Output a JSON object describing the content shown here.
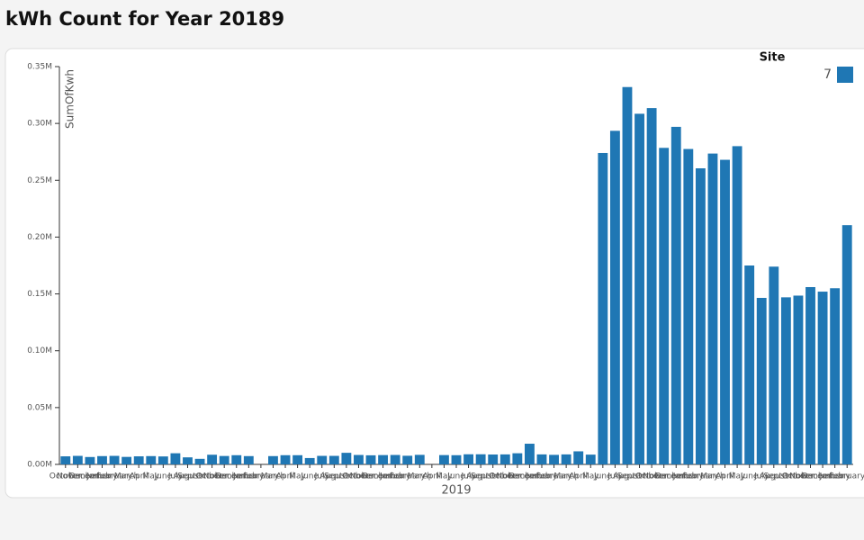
{
  "chart_data": {
    "type": "bar",
    "title": "kWh Count for Year 20189",
    "y_label": "SumOfKwh",
    "x_label": "2019",
    "legend_title": "Site",
    "categories": [
      "October",
      "November",
      "December",
      "January",
      "February",
      "March",
      "April",
      "May",
      "June",
      "July",
      "August",
      "September",
      "October",
      "November",
      "December",
      "January",
      "February",
      "March",
      "April",
      "May",
      "June",
      "July",
      "August",
      "September",
      "October",
      "November",
      "December",
      "January",
      "February",
      "March",
      "April",
      "May",
      "June",
      "July",
      "August",
      "September",
      "October",
      "November",
      "December",
      "January",
      "February",
      "March",
      "April",
      "May",
      "June",
      "July",
      "August",
      "September",
      "October",
      "November",
      "December",
      "January",
      "February",
      "March",
      "April",
      "May",
      "June",
      "July",
      "August",
      "September",
      "October",
      "November",
      "December",
      "January",
      "February"
    ],
    "series": [
      {
        "name": "7",
        "color": "#1f77b4",
        "values": [
          7100,
          7500,
          6500,
          7300,
          7500,
          6600,
          7100,
          7300,
          7000,
          9800,
          6200,
          4900,
          8500,
          7400,
          8100,
          7300,
          null,
          7300,
          8100,
          8100,
          5600,
          7500,
          7500,
          10200,
          8300,
          8000,
          8200,
          8300,
          7600,
          8400,
          null,
          8200,
          8100,
          8900,
          8900,
          8700,
          8800,
          9800,
          18200,
          8800,
          8400,
          8800,
          11500,
          8600,
          274000,
          293500,
          332000,
          308500,
          313500,
          278500,
          297000,
          277500,
          260500,
          273500,
          268000,
          280000,
          175000,
          146500,
          174000,
          147000,
          148500,
          156000,
          152000,
          155000,
          210500
        ]
      }
    ],
    "ylim": [
      0,
      350000
    ],
    "yticks": [
      {
        "value": 0,
        "label": "0.00M"
      },
      {
        "value": 50000,
        "label": "0.05M"
      },
      {
        "value": 100000,
        "label": "0.10M"
      },
      {
        "value": 150000,
        "label": "0.15M"
      },
      {
        "value": 200000,
        "label": "0.20M"
      },
      {
        "value": 250000,
        "label": "0.25M"
      },
      {
        "value": 300000,
        "label": "0.30M"
      },
      {
        "value": 350000,
        "label": "0.35M"
      }
    ],
    "legend": "top-right"
  }
}
